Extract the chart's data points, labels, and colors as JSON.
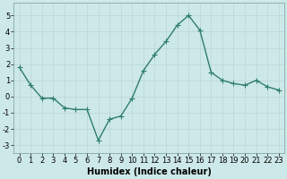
{
  "x": [
    0,
    1,
    2,
    3,
    4,
    5,
    6,
    7,
    8,
    9,
    10,
    11,
    12,
    13,
    14,
    15,
    16,
    17,
    18,
    19,
    20,
    21,
    22,
    23
  ],
  "y": [
    1.8,
    0.7,
    -0.1,
    -0.1,
    -0.7,
    -0.8,
    -0.8,
    -2.7,
    -1.4,
    -1.2,
    -0.1,
    1.6,
    2.6,
    3.4,
    4.4,
    5.0,
    4.1,
    1.5,
    1.0,
    0.8,
    0.7,
    1.0,
    0.6,
    0.4
  ],
  "line_color": "#2e7d6e",
  "marker": "D",
  "marker_size": 2.0,
  "line_width": 1.0,
  "bg_color": "#cde8e8",
  "grid_color": "#b8d4d4",
  "xlabel": "Humidex (Indice chaleur)",
  "xlabel_fontsize": 7,
  "xlabel_fontweight": "bold",
  "ylim": [
    -3.5,
    5.8
  ],
  "yticks": [
    -3,
    -2,
    -1,
    0,
    1,
    2,
    3,
    4,
    5
  ],
  "xticks": [
    0,
    1,
    2,
    3,
    4,
    5,
    6,
    7,
    8,
    9,
    10,
    11,
    12,
    13,
    14,
    15,
    16,
    17,
    18,
    19,
    20,
    21,
    22,
    23
  ],
  "tick_fontsize": 6,
  "spine_color": "#7a9a9a"
}
